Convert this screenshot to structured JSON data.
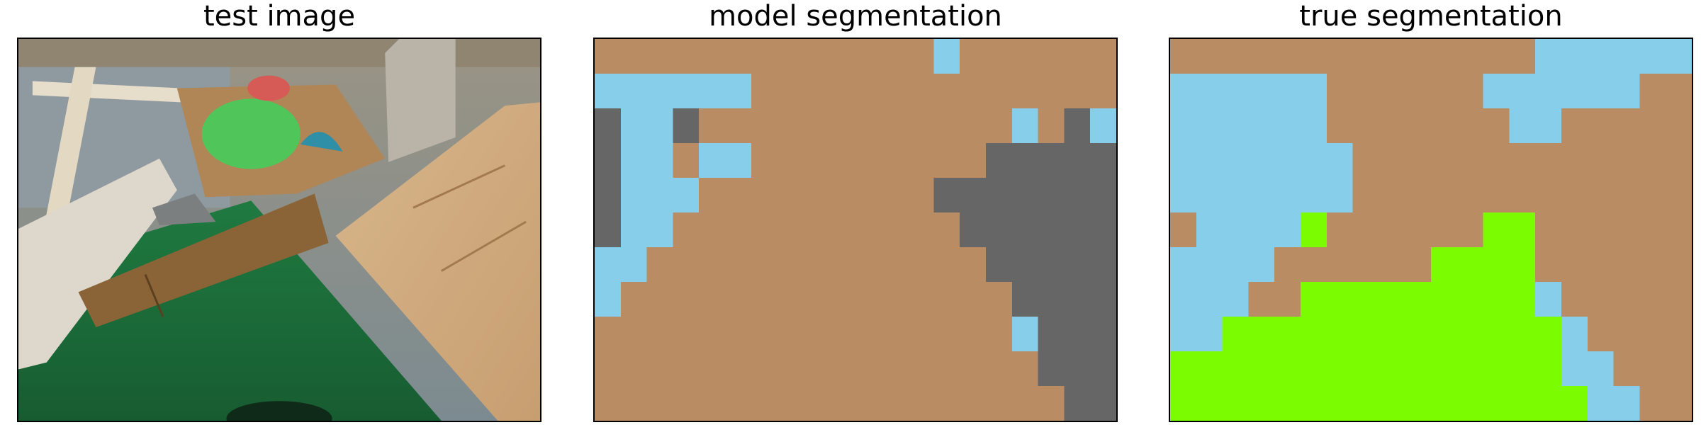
{
  "panels": [
    {
      "title": "test image"
    },
    {
      "title": "model segmentation"
    },
    {
      "title": "true segmentation"
    }
  ],
  "segmentation_grid": {
    "cols": 20,
    "rows": 11
  },
  "palette": {
    "B": "#b98c63",
    "L": "#87ceeb",
    "G": "#666666",
    "Y": "#7cfc00"
  },
  "model_segmentation": [
    "BBBBBBBBBBBBBLBBBBBB",
    "LLLLLLBBBBBBBBBBBBBB",
    "GLLGBBBBBBBBBBBBLBGL",
    "GLLBLLBBBBBBBBBGGGGG",
    "GLLLBBBBBBBBBGGGGGGG",
    "GLLBBBBBBBBBBBGGGGGG",
    "LLBBBBBBBBBBBBBGGGGG",
    "LBBBBBBBBBBBBBBBGGGG",
    "BBBBBBBBBBBBBBBBLGGG",
    "BBBBBBBBBBBBBBBBBGGG",
    "BBBBBBBBBBBBBBBBBBGG"
  ],
  "true_segmentation": [
    "BBBBBBBBBBBBBBLLLLLL",
    "LLLLLLBBBBBBLLLLLLBB",
    "LLLLLLBBBBBBBLLBBBBB",
    "LLLLLLLBBBBBBBBBBBBB",
    "LLLLLLLBBBBBBBBBBBBB",
    "BLLLLYBBBBBBYYBBBBBB",
    "LLLLBBBBBBYYYYBBBBBB",
    "LLLBBYYYYYYYYYLBBBBB",
    "LLYYYYYYYYYYYYYLBBBB",
    "YYYYYYYYYYYYYYYLLBBB",
    "YYYYYYYYYYYYYYYYLLBB"
  ]
}
